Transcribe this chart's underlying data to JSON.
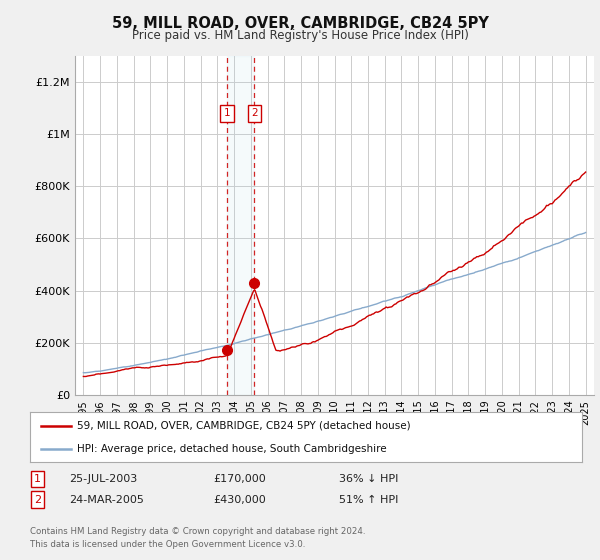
{
  "title": "59, MILL ROAD, OVER, CAMBRIDGE, CB24 5PY",
  "subtitle": "Price paid vs. HM Land Registry's House Price Index (HPI)",
  "ylim": [
    0,
    1300000
  ],
  "yticks": [
    0,
    200000,
    400000,
    600000,
    800000,
    1000000,
    1200000
  ],
  "ytick_labels": [
    "£0",
    "£200K",
    "£400K",
    "£600K",
    "£800K",
    "£1M",
    "£1.2M"
  ],
  "background_color": "#f0f0f0",
  "plot_bg_color": "#ffffff",
  "grid_color": "#cccccc",
  "red_line_color": "#cc0000",
  "blue_line_color": "#88aacc",
  "transaction1_date": "25-JUL-2003",
  "transaction1_price": 170000,
  "transaction1_label": "36% ↓ HPI",
  "transaction1_x": 2003.56,
  "transaction2_date": "24-MAR-2005",
  "transaction2_price": 430000,
  "transaction2_label": "51% ↑ HPI",
  "transaction2_x": 2005.22,
  "legend_line1": "59, MILL ROAD, OVER, CAMBRIDGE, CB24 5PY (detached house)",
  "legend_line2": "HPI: Average price, detached house, South Cambridgeshire",
  "footer_line1": "Contains HM Land Registry data © Crown copyright and database right 2024.",
  "footer_line2": "This data is licensed under the Open Government Licence v3.0."
}
